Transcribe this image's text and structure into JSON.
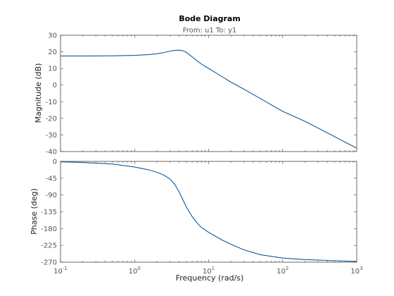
{
  "chart_data": {
    "type": "line",
    "title": "Bode Diagram",
    "subtitle": "From: u1  To: y1",
    "xlabel": "Frequency  (rad/s)",
    "x_scale": "log",
    "xlim": [
      0.1,
      1000
    ],
    "x_ticks": [
      {
        "value": 0.1,
        "base": "10",
        "exp": "-1"
      },
      {
        "value": 1,
        "base": "10",
        "exp": "0"
      },
      {
        "value": 10,
        "base": "10",
        "exp": "1"
      },
      {
        "value": 100,
        "base": "10",
        "exp": "2"
      },
      {
        "value": 1000,
        "base": "10",
        "exp": "3"
      }
    ],
    "line_color": "#0e5a9e",
    "grid": false,
    "panels": [
      {
        "id": "magnitude",
        "ylabel": "Magnitude (dB)",
        "ylim": [
          -40,
          30
        ],
        "y_ticks": [
          30,
          20,
          10,
          0,
          -10,
          -20,
          -30,
          -40
        ],
        "series": [
          {
            "x": [
              0.1,
              0.2,
              0.5,
              1,
              1.5,
              2,
              2.5,
              3,
              3.5,
              4,
              4.5,
              5,
              6,
              7,
              8,
              10,
              15,
              20,
              30,
              50,
              100,
              200,
              500,
              1000
            ],
            "y": [
              17.5,
              17.5,
              17.6,
              17.9,
              18.3,
              18.8,
              19.6,
              20.4,
              20.9,
              21.0,
              20.7,
              19.7,
              17.0,
              14.6,
              12.7,
              10.0,
              5.2,
              1.8,
              -2.5,
              -8.1,
              -15.8,
              -21.8,
              -31.0,
              -38.0
            ]
          }
        ]
      },
      {
        "id": "phase",
        "ylabel": "Phase (deg)",
        "ylim": [
          -270,
          0
        ],
        "y_ticks": [
          0,
          -45,
          -90,
          -135,
          -180,
          -225,
          -270
        ],
        "series": [
          {
            "x": [
              0.1,
              0.2,
              0.5,
              1,
              1.5,
              2,
              2.5,
              3,
              3.5,
              4,
              4.5,
              5,
              6,
              7,
              8,
              10,
              15,
              20,
              30,
              50,
              100,
              200,
              500,
              1000
            ],
            "y": [
              -1,
              -3,
              -7,
              -15,
              -22,
              -29,
              -37,
              -47,
              -62,
              -82,
              -103,
              -122,
              -148,
              -165,
              -177,
              -190,
              -210,
              -222,
              -237,
              -250,
              -259,
              -263,
              -266,
              -268
            ]
          }
        ]
      }
    ]
  }
}
